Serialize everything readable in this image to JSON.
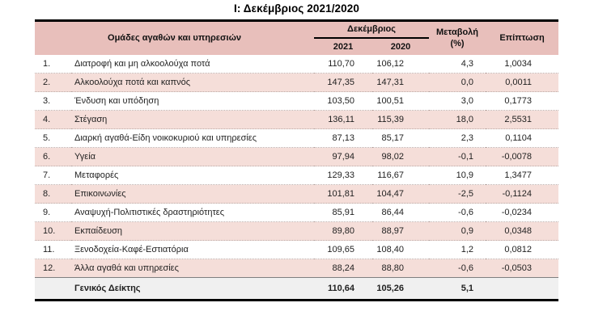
{
  "title": "Ι: Δεκέμβριος 2021/2020",
  "colors": {
    "header_bg": "#e8bfbb",
    "alt_row_bg": "#f5ded9",
    "footer_bg": "#f0f0f0",
    "border": "#000000",
    "text": "#1f1f1f"
  },
  "table": {
    "header": {
      "groups_label": "Ομάδες αγαθών και υπηρεσιών",
      "december_label": "Δεκέμβριος",
      "year_2021": "2021",
      "year_2020": "2020",
      "change_label": "Μεταβολή",
      "change_unit": "(%)",
      "impact_label": "Επίπτωση"
    },
    "rows": [
      {
        "num": "1.",
        "name": "Διατροφή και μη αλκοολούχα ποτά",
        "y2021": "110,70",
        "y2020": "106,12",
        "change": "4,3",
        "impact": "1,0034"
      },
      {
        "num": "2.",
        "name": "Αλκοολούχα ποτά και καπνός",
        "y2021": "147,35",
        "y2020": "147,31",
        "change": "0,0",
        "impact": "0,0011"
      },
      {
        "num": "3.",
        "name": "Ένδυση και υπόδηση",
        "y2021": "103,50",
        "y2020": "100,51",
        "change": "3,0",
        "impact": "0,1773"
      },
      {
        "num": "4.",
        "name": "Στέγαση",
        "y2021": "136,11",
        "y2020": "115,39",
        "change": "18,0",
        "impact": "2,5531"
      },
      {
        "num": "5.",
        "name": "Διαρκή αγαθά-Είδη νοικοκυριού και υπηρεσίες",
        "y2021": "87,13",
        "y2020": "85,17",
        "change": "2,3",
        "impact": "0,1104"
      },
      {
        "num": "6.",
        "name": "Υγεία",
        "y2021": "97,94",
        "y2020": "98,02",
        "change": "-0,1",
        "impact": "-0,0078"
      },
      {
        "num": "7.",
        "name": "Μεταφορές",
        "y2021": "129,33",
        "y2020": "116,67",
        "change": "10,9",
        "impact": "1,3477"
      },
      {
        "num": "8.",
        "name": "Επικοινωνίες",
        "y2021": "101,81",
        "y2020": "104,47",
        "change": "-2,5",
        "impact": "-0,1124"
      },
      {
        "num": "9.",
        "name": "Αναψυχή-Πολιτιστικές δραστηριότητες",
        "y2021": "85,91",
        "y2020": "86,44",
        "change": "-0,6",
        "impact": "-0,0234"
      },
      {
        "num": "10.",
        "name": "Εκπαίδευση",
        "y2021": "89,80",
        "y2020": "88,97",
        "change": "0,9",
        "impact": "0,0348"
      },
      {
        "num": "11.",
        "name": "Ξενοδοχεία-Καφέ-Εστιατόρια",
        "y2021": "109,65",
        "y2020": "108,40",
        "change": "1,2",
        "impact": "0,0812"
      },
      {
        "num": "12.",
        "name": "Άλλα αγαθά και υπηρεσίες",
        "y2021": "88,24",
        "y2020": "88,80",
        "change": "-0,6",
        "impact": "-0,0503"
      }
    ],
    "footer": {
      "name": "Γενικός Δείκτης",
      "y2021": "110,64",
      "y2020": "105,26",
      "change": "5,1",
      "impact": ""
    }
  }
}
